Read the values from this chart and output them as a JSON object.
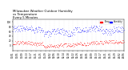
{
  "title": "Milwaukee Weather Outdoor Humidity\nvs Temperature\nEvery 5 Minutes",
  "title_fontsize": 2.8,
  "background_color": "#ffffff",
  "blue_color": "#0000ff",
  "red_color": "#ff0000",
  "legend_labels": [
    "Temp",
    "Humidity"
  ],
  "legend_colors": [
    "#ff0000",
    "#0000ff"
  ],
  "ylim": [
    -20,
    110
  ],
  "xlim": [
    0,
    288
  ],
  "tick_fontsize": 2.0,
  "yticks": [
    0,
    20,
    40,
    60,
    80,
    100
  ],
  "num_points": 288,
  "grid_color": "#cccccc",
  "dpi": 100
}
